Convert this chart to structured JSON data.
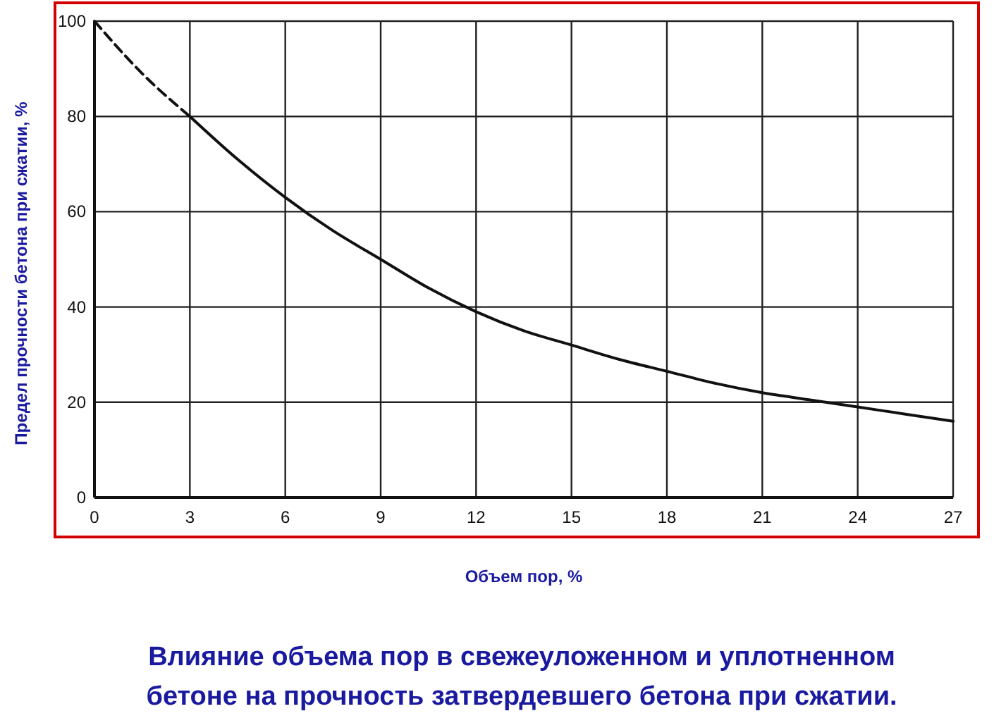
{
  "chart_data": {
    "type": "line",
    "title": "Влияние объема пор в свежеуложенном и уплотненном\nбетоне на прочность затвердевшего бетона при сжатии.",
    "xlabel": "Объем пор, %",
    "ylabel": "Предел прочности бетона при сжатии, %",
    "series": [
      {
        "color": "#111111",
        "line_style": "dashed",
        "x": [
          0,
          1.5,
          3
        ],
        "values": [
          100,
          89,
          80
        ]
      },
      {
        "color": "#111111",
        "line_style": "solid",
        "x": [
          3,
          4.5,
          6,
          7.5,
          9,
          10.5,
          12,
          13.5,
          15,
          16.5,
          18,
          19.5,
          21,
          22.5,
          24,
          25.5,
          27
        ],
        "values": [
          80,
          71,
          63,
          56,
          50,
          44,
          39,
          35,
          32,
          29,
          26.5,
          24,
          22,
          20.5,
          19,
          17.5,
          16
        ]
      }
    ],
    "xlim": [
      0,
      27
    ],
    "xticks": [
      0,
      3,
      6,
      9,
      12,
      15,
      18,
      21,
      24,
      27
    ],
    "ylim": [
      0,
      100
    ],
    "yticks": [
      0,
      20,
      40,
      60,
      80,
      100
    ],
    "grid": true
  }
}
